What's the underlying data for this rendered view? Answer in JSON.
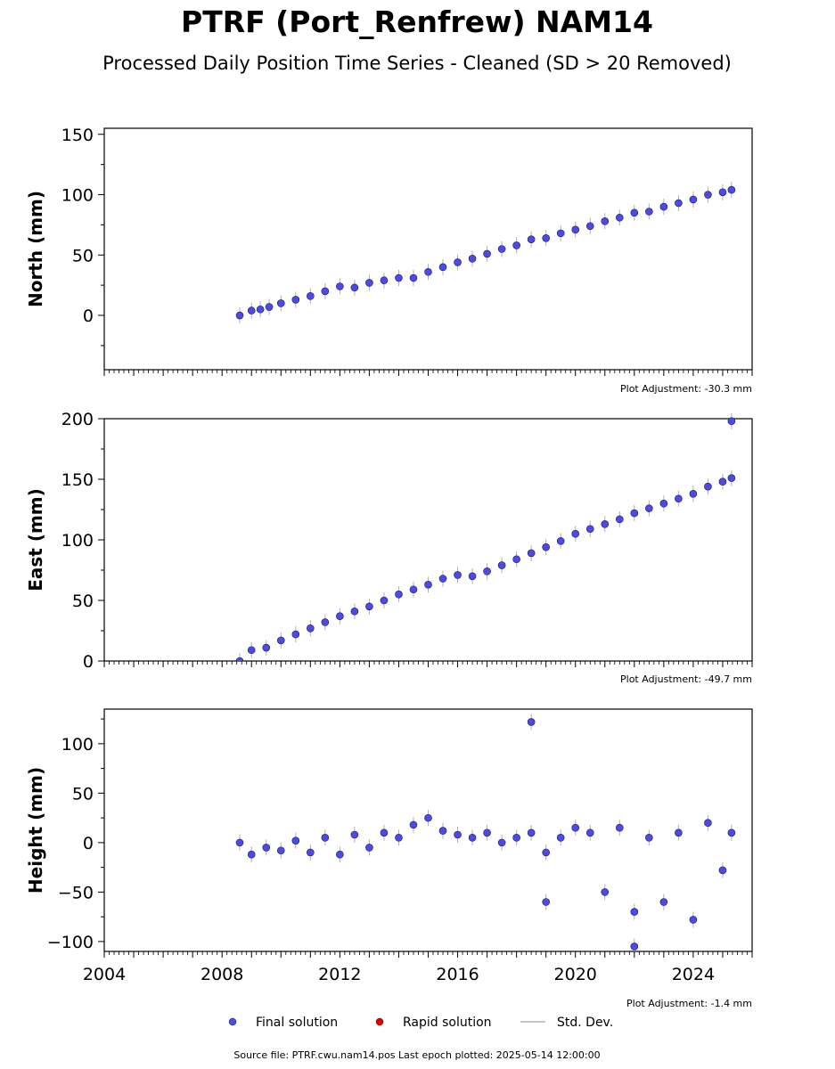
{
  "title": "PTRF (Port_Renfrew) NAM14",
  "subtitle": "Processed Daily Position Time Series - Cleaned (SD > 20 Removed)",
  "source_line": "Source file: PTRF.cwu.nam14.pos  Last epoch plotted: 2025-05-14 12:00:00",
  "legend": {
    "final_label": "Final solution",
    "rapid_label": "Rapid solution",
    "std_label": "Std. Dev."
  },
  "colors": {
    "final": "#4a4af0",
    "final_edge": "#1a1a40",
    "rapid": "#dd0000",
    "std": "#b0b0b0"
  },
  "chart_data": [
    {
      "type": "scatter",
      "ylabel": "North (mm)",
      "adjustment": "Plot Adjustment: -30.3 mm",
      "ylim": [
        -45,
        155
      ],
      "yticks": [
        0,
        50,
        100,
        150
      ],
      "xlim": [
        2004,
        2026
      ],
      "grid": false,
      "series": [
        {
          "points": [
            [
              2008.6,
              0
            ],
            [
              2009.0,
              4
            ],
            [
              2009.3,
              5
            ],
            [
              2009.6,
              7
            ],
            [
              2010.0,
              10
            ],
            [
              2010.5,
              13
            ],
            [
              2011.0,
              16
            ],
            [
              2011.5,
              20
            ],
            [
              2012.0,
              24
            ],
            [
              2012.5,
              23
            ],
            [
              2013.0,
              27
            ],
            [
              2013.5,
              29
            ],
            [
              2014.0,
              31
            ],
            [
              2014.5,
              31
            ],
            [
              2015.0,
              36
            ],
            [
              2015.5,
              40
            ],
            [
              2016.0,
              44
            ],
            [
              2016.5,
              47
            ],
            [
              2017.0,
              51
            ],
            [
              2017.5,
              55
            ],
            [
              2018.0,
              58
            ],
            [
              2018.5,
              63
            ],
            [
              2019.0,
              64
            ],
            [
              2019.5,
              68
            ],
            [
              2020.0,
              71
            ],
            [
              2020.5,
              74
            ],
            [
              2021.0,
              78
            ],
            [
              2021.5,
              81
            ],
            [
              2022.0,
              85
            ],
            [
              2022.5,
              86
            ],
            [
              2023.0,
              90
            ],
            [
              2023.5,
              93
            ],
            [
              2024.0,
              96
            ],
            [
              2024.5,
              100
            ],
            [
              2025.0,
              102
            ],
            [
              2025.3,
              104
            ]
          ]
        }
      ]
    },
    {
      "type": "scatter",
      "ylabel": "East (mm)",
      "adjustment": "Plot Adjustment: -49.7 mm",
      "ylim": [
        0,
        200
      ],
      "yticks": [
        0,
        50,
        100,
        150,
        200
      ],
      "xlim": [
        2004,
        2026
      ],
      "grid": false,
      "series": [
        {
          "points": [
            [
              2008.6,
              0
            ],
            [
              2009.0,
              9
            ],
            [
              2009.5,
              11
            ],
            [
              2010.0,
              17
            ],
            [
              2010.5,
              22
            ],
            [
              2011.0,
              27
            ],
            [
              2011.5,
              32
            ],
            [
              2012.0,
              37
            ],
            [
              2012.5,
              41
            ],
            [
              2013.0,
              45
            ],
            [
              2013.5,
              50
            ],
            [
              2014.0,
              55
            ],
            [
              2014.5,
              59
            ],
            [
              2015.0,
              63
            ],
            [
              2015.5,
              68
            ],
            [
              2016.0,
              71
            ],
            [
              2016.5,
              70
            ],
            [
              2017.0,
              74
            ],
            [
              2017.5,
              79
            ],
            [
              2018.0,
              84
            ],
            [
              2018.5,
              89
            ],
            [
              2019.0,
              94
            ],
            [
              2019.5,
              99
            ],
            [
              2020.0,
              105
            ],
            [
              2020.5,
              109
            ],
            [
              2021.0,
              113
            ],
            [
              2021.5,
              117
            ],
            [
              2022.0,
              122
            ],
            [
              2022.5,
              126
            ],
            [
              2023.0,
              130
            ],
            [
              2023.5,
              134
            ],
            [
              2024.0,
              138
            ],
            [
              2024.5,
              144
            ],
            [
              2025.0,
              148
            ],
            [
              2025.3,
              151
            ],
            [
              2025.3,
              198
            ]
          ]
        }
      ]
    },
    {
      "type": "scatter",
      "ylabel": "Height (mm)",
      "adjustment": "Plot Adjustment: -1.4 mm",
      "ylim": [
        -110,
        135
      ],
      "yticks": [
        -100,
        -50,
        0,
        50,
        100
      ],
      "xlim": [
        2004,
        2026
      ],
      "xticks": [
        2004,
        2008,
        2012,
        2016,
        2020,
        2024
      ],
      "grid": false,
      "series": [
        {
          "points": [
            [
              2008.6,
              0
            ],
            [
              2009.0,
              -12
            ],
            [
              2009.5,
              -5
            ],
            [
              2010.0,
              -8
            ],
            [
              2010.5,
              2
            ],
            [
              2011.0,
              -10
            ],
            [
              2011.5,
              5
            ],
            [
              2012.0,
              -12
            ],
            [
              2012.5,
              8
            ],
            [
              2013.0,
              -5
            ],
            [
              2013.5,
              10
            ],
            [
              2014.0,
              5
            ],
            [
              2014.5,
              18
            ],
            [
              2015.0,
              25
            ],
            [
              2015.5,
              12
            ],
            [
              2016.0,
              8
            ],
            [
              2016.5,
              5
            ],
            [
              2017.0,
              10
            ],
            [
              2017.5,
              0
            ],
            [
              2018.0,
              5
            ],
            [
              2018.5,
              10
            ],
            [
              2018.5,
              122
            ],
            [
              2019.0,
              -10
            ],
            [
              2019.0,
              -60
            ],
            [
              2019.5,
              5
            ],
            [
              2020.0,
              15
            ],
            [
              2020.5,
              10
            ],
            [
              2021.0,
              -50
            ],
            [
              2021.5,
              15
            ],
            [
              2022.0,
              -70
            ],
            [
              2022.0,
              -105
            ],
            [
              2022.5,
              5
            ],
            [
              2023.0,
              -60
            ],
            [
              2023.5,
              10
            ],
            [
              2024.0,
              -78
            ],
            [
              2024.5,
              20
            ],
            [
              2025.0,
              -28
            ],
            [
              2025.3,
              10
            ]
          ]
        }
      ]
    }
  ]
}
